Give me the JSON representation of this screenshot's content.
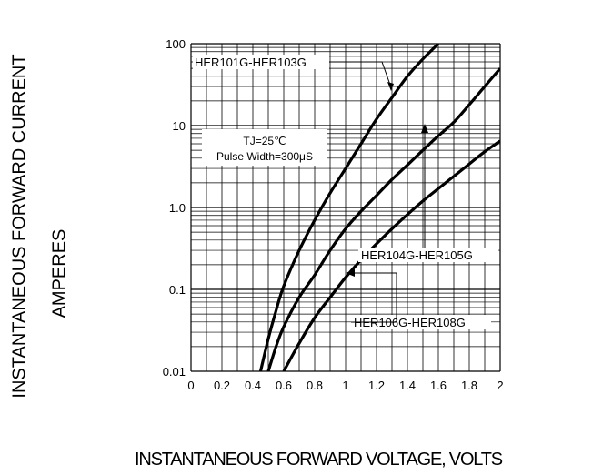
{
  "chart_data": {
    "type": "line",
    "title": "",
    "ylabel_line1": "INSTANTANEOUS FORWARD CURRENT",
    "ylabel_line2": "AMPERES",
    "xlabel": "INSTANTANEOUS FORWARD VOLTAGE, VOLTS",
    "xlim": [
      0,
      2
    ],
    "ylim": [
      0.01,
      100
    ],
    "yscale": "log",
    "grid": true,
    "x_ticks": [
      0,
      0.2,
      0.4,
      0.6,
      0.8,
      1,
      1.2,
      1.4,
      1.6,
      1.8,
      2
    ],
    "x_tick_labels": [
      "0",
      "0.2",
      "0.4",
      "0.6",
      "0.8",
      "1",
      "1.2",
      "1.4",
      "1.6",
      "1.8",
      "2"
    ],
    "y_ticks": [
      0.01,
      0.1,
      1,
      10,
      100
    ],
    "y_tick_labels": [
      "0.01",
      "0.1",
      "1.0",
      "10",
      "100"
    ],
    "annotations": {
      "condition_line1": "TJ=25℃",
      "condition_line2": "Pulse Width=300μS"
    },
    "series": [
      {
        "name": "HER101G-HER103G",
        "x": [
          0.45,
          0.5,
          0.55,
          0.6,
          0.7,
          0.8,
          0.9,
          1.0,
          1.1,
          1.2,
          1.3,
          1.4,
          1.5,
          1.6
        ],
        "y": [
          0.01,
          0.025,
          0.055,
          0.11,
          0.3,
          0.7,
          1.5,
          3.0,
          6.0,
          12,
          22,
          40,
          65,
          100
        ]
      },
      {
        "name": "HER104G-HER105G",
        "x": [
          0.5,
          0.55,
          0.6,
          0.7,
          0.8,
          0.9,
          1.0,
          1.1,
          1.2,
          1.3,
          1.4,
          1.5,
          1.6,
          1.7,
          1.8,
          1.9,
          2.0
        ],
        "y": [
          0.01,
          0.02,
          0.035,
          0.08,
          0.15,
          0.3,
          0.55,
          0.9,
          1.4,
          2.2,
          3.3,
          5.0,
          7.5,
          11,
          18,
          30,
          50
        ]
      },
      {
        "name": "HER106G-HER108G",
        "x": [
          0.6,
          0.7,
          0.8,
          0.9,
          1.0,
          1.1,
          1.2,
          1.3,
          1.4,
          1.5,
          1.6,
          1.7,
          1.8,
          1.9,
          2.0
        ],
        "y": [
          0.01,
          0.022,
          0.045,
          0.08,
          0.14,
          0.23,
          0.36,
          0.55,
          0.82,
          1.2,
          1.7,
          2.4,
          3.4,
          4.8,
          6.5
        ]
      }
    ]
  }
}
